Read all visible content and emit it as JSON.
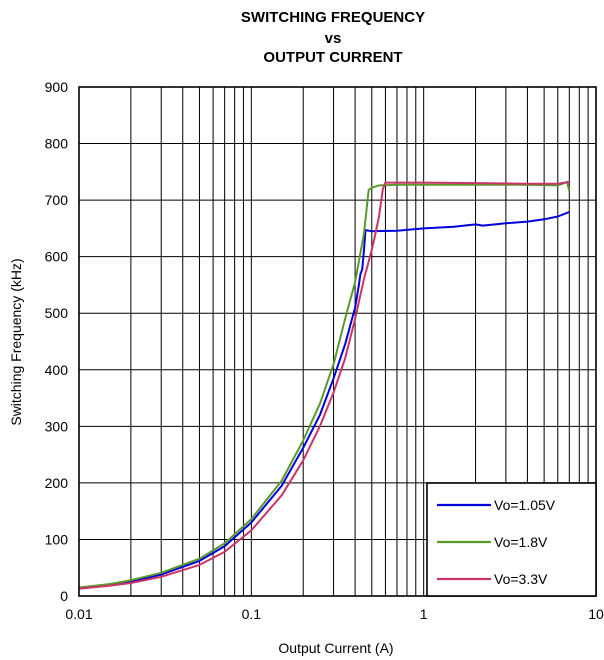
{
  "chart_data": {
    "type": "line",
    "title_lines": [
      "SWITCHING FREQUENCY",
      "vs",
      "OUTPUT CURRENT"
    ],
    "xlabel": "Output Current (A)",
    "ylabel": "Switching Frequency (kHz)",
    "x_scale": "log",
    "xlim": [
      0.01,
      10
    ],
    "ylim": [
      0,
      900
    ],
    "x_ticks": [
      0.01,
      0.1,
      1,
      10
    ],
    "x_tick_labels": [
      "0.01",
      "0.1",
      "1",
      "10"
    ],
    "y_ticks": [
      0,
      100,
      200,
      300,
      400,
      500,
      600,
      700,
      800,
      900
    ],
    "y_tick_labels": [
      "0",
      "100",
      "200",
      "300",
      "400",
      "500",
      "600",
      "700",
      "800",
      "900"
    ],
    "grid": true,
    "legend_position": "bottom-right",
    "series": [
      {
        "name": "Vo=1.05V",
        "color": "#0000dd",
        "points": [
          [
            0.01,
            13
          ],
          [
            0.015,
            19
          ],
          [
            0.02,
            25
          ],
          [
            0.03,
            38
          ],
          [
            0.05,
            62
          ],
          [
            0.07,
            88
          ],
          [
            0.1,
            130
          ],
          [
            0.15,
            195
          ],
          [
            0.2,
            262
          ],
          [
            0.25,
            320
          ],
          [
            0.3,
            385
          ],
          [
            0.35,
            445
          ],
          [
            0.4,
            510
          ],
          [
            0.42,
            548
          ],
          [
            0.43,
            570
          ],
          [
            0.44,
            577
          ],
          [
            0.45,
            610
          ],
          [
            0.46,
            647
          ],
          [
            0.5,
            645
          ],
          [
            0.7,
            646
          ],
          [
            1,
            650
          ],
          [
            1.5,
            653
          ],
          [
            2,
            657
          ],
          [
            2.2,
            655
          ],
          [
            3,
            659
          ],
          [
            4,
            662
          ],
          [
            5,
            666
          ],
          [
            6,
            671
          ],
          [
            7,
            679
          ]
        ]
      },
      {
        "name": "Vo=1.8V",
        "color": "#5a9a2a",
        "points": [
          [
            0.01,
            15
          ],
          [
            0.015,
            21
          ],
          [
            0.02,
            28
          ],
          [
            0.03,
            41
          ],
          [
            0.05,
            66
          ],
          [
            0.07,
            93
          ],
          [
            0.1,
            136
          ],
          [
            0.15,
            204
          ],
          [
            0.2,
            275
          ],
          [
            0.25,
            340
          ],
          [
            0.3,
            410
          ],
          [
            0.35,
            490
          ],
          [
            0.4,
            555
          ],
          [
            0.45,
            640
          ],
          [
            0.48,
            718
          ],
          [
            0.5,
            722
          ],
          [
            0.55,
            726
          ],
          [
            0.7,
            727
          ],
          [
            1,
            727
          ],
          [
            2,
            727
          ],
          [
            4,
            727
          ],
          [
            6,
            726
          ],
          [
            6.8,
            732
          ],
          [
            7,
            716
          ]
        ]
      },
      {
        "name": "Vo=3.3V",
        "color": "#cc3366",
        "points": [
          [
            0.01,
            13
          ],
          [
            0.015,
            18
          ],
          [
            0.02,
            23
          ],
          [
            0.03,
            34
          ],
          [
            0.05,
            55
          ],
          [
            0.07,
            78
          ],
          [
            0.1,
            116
          ],
          [
            0.15,
            178
          ],
          [
            0.2,
            240
          ],
          [
            0.25,
            300
          ],
          [
            0.3,
            360
          ],
          [
            0.35,
            420
          ],
          [
            0.4,
            490
          ],
          [
            0.45,
            560
          ],
          [
            0.5,
            612
          ],
          [
            0.52,
            635
          ],
          [
            0.55,
            670
          ],
          [
            0.58,
            720
          ],
          [
            0.6,
            731
          ],
          [
            0.7,
            731
          ],
          [
            1,
            731
          ],
          [
            2,
            730
          ],
          [
            4,
            729
          ],
          [
            6,
            729
          ],
          [
            7,
            732
          ]
        ]
      }
    ]
  }
}
